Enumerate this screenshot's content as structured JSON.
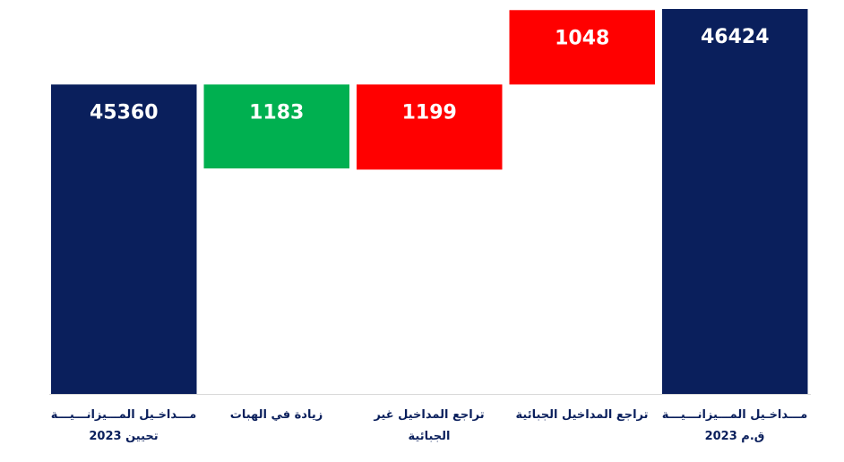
{
  "chart_data": {
    "type": "waterfall",
    "categories": [
      "مـــداخـيل المـــيزانـــيـــة تحيين 2023",
      "زيادة في الهبات",
      "تراجع المداخيل غير الجبائية",
      "تراجع المداخيل الجبائية",
      "مـــداخـيل المـــيزانـــيـــة ق.م 2023"
    ],
    "values": [
      45360,
      1183,
      1199,
      1048,
      46424
    ],
    "colors": [
      "#0a1f5c",
      "#00b050",
      "#ff0000",
      "#ff0000",
      "#0a1f5c"
    ],
    "ylim": [
      41000,
      46500
    ]
  }
}
